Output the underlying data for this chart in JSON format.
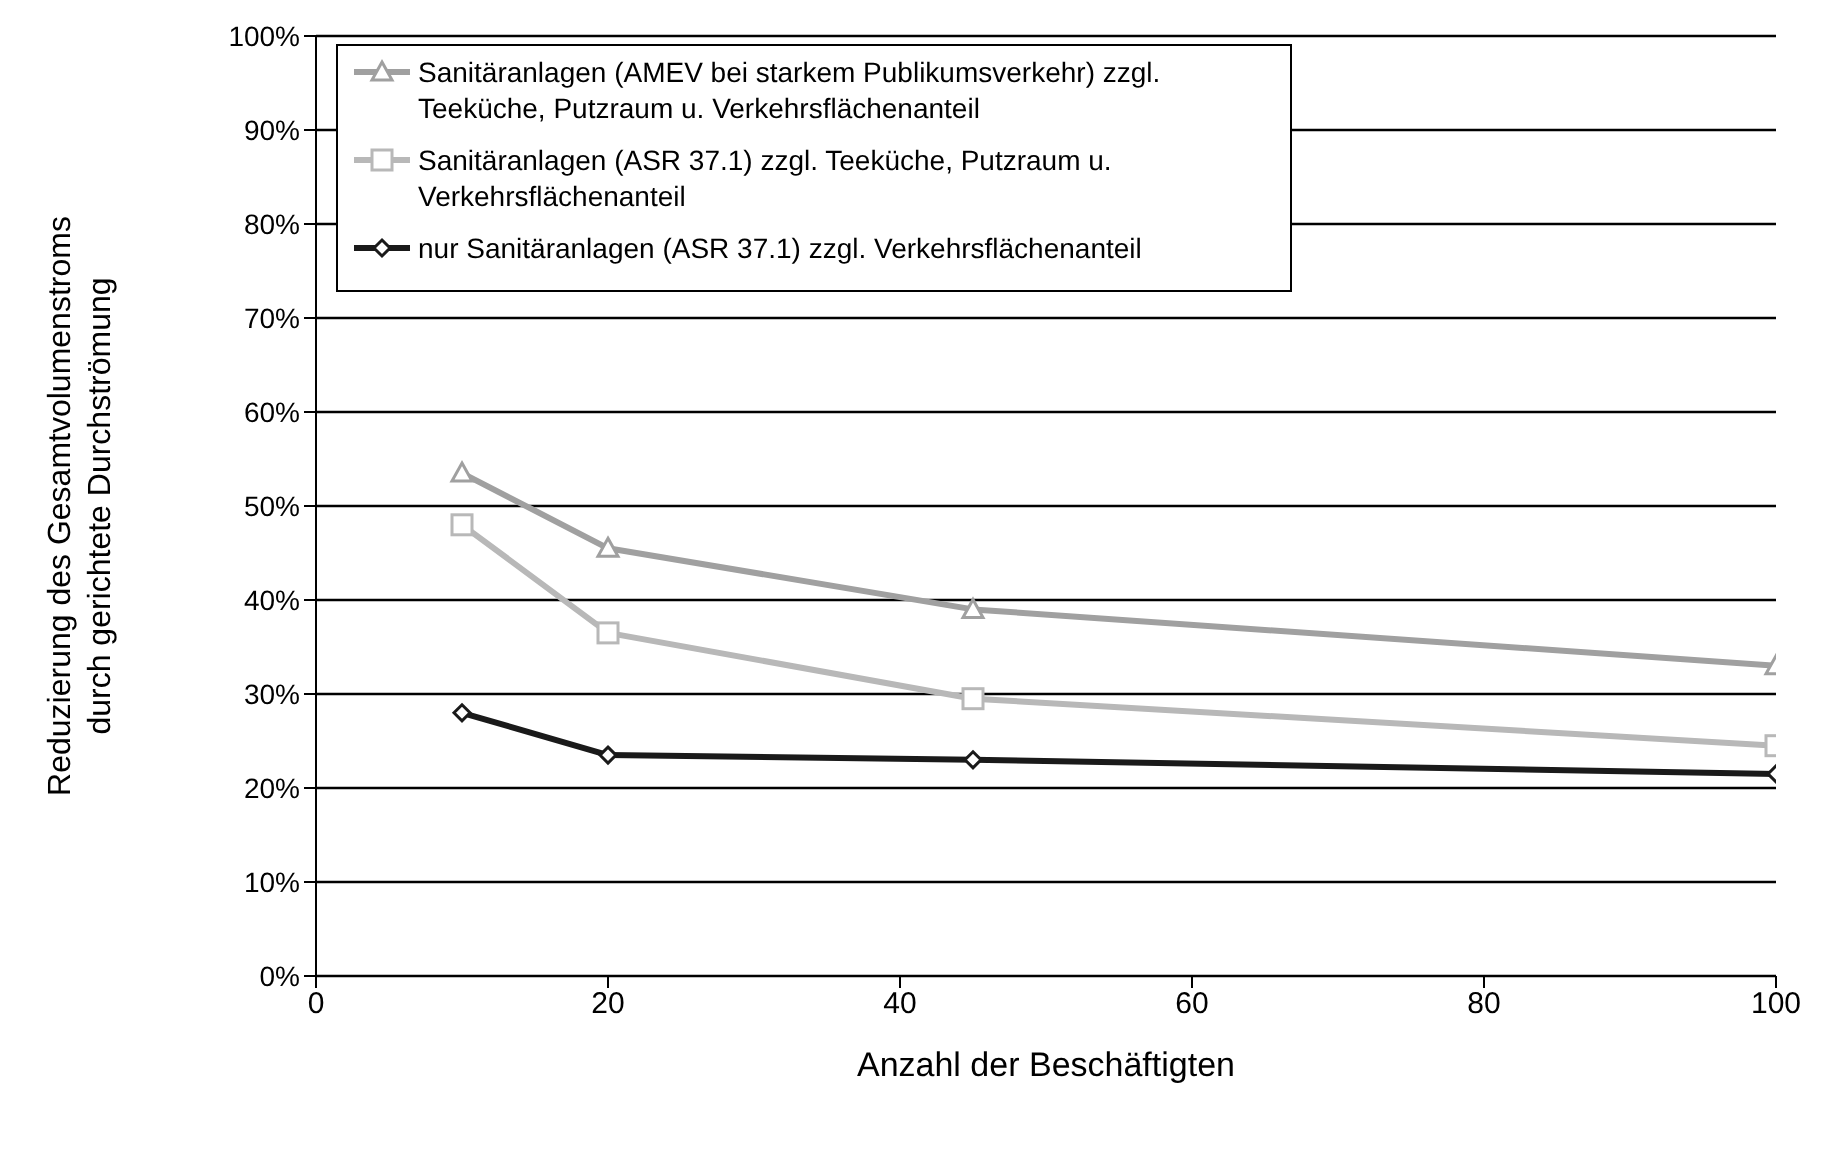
{
  "chart_data": {
    "type": "line",
    "xlabel": "Anzahl der Beschäftigten",
    "ylabel": "Reduzierung des Gesamtvolumenstroms durch gerichtete Durchströmung",
    "x": [
      10,
      20,
      45,
      100
    ],
    "series": [
      {
        "name": "Sanitäranlagen  (AMEV bei starkem Publikumsverkehr) zzgl. Teeküche, Putzraum u. Verkehrsflächenanteil",
        "color": "#a0a0a0",
        "marker": "triangle",
        "values": [
          0.535,
          0.455,
          0.39,
          0.33
        ]
      },
      {
        "name": "Sanitäranlagen (ASR 37.1) zzgl. Teeküche, Putzraum u. Verkehrsflächenanteil",
        "color": "#b8b8b8",
        "marker": "square",
        "values": [
          0.48,
          0.365,
          0.295,
          0.245
        ]
      },
      {
        "name": "nur Sanitäranlagen (ASR 37.1) zzgl. Verkehrsflächenanteil",
        "color": "#1a1a1a",
        "marker": "diamond",
        "values": [
          0.28,
          0.235,
          0.23,
          0.215
        ]
      }
    ],
    "xlim": [
      0,
      100
    ],
    "xticks": [
      0,
      20,
      40,
      60,
      80,
      100
    ],
    "ylim": [
      0,
      1
    ],
    "yticks": [
      {
        "value": 0,
        "label": "0%"
      },
      {
        "value": 0.1,
        "label": "10%"
      },
      {
        "value": 0.2,
        "label": "20%"
      },
      {
        "value": 0.3,
        "label": "30%"
      },
      {
        "value": 0.4,
        "label": "40%"
      },
      {
        "value": 0.5,
        "label": "50%"
      },
      {
        "value": 0.6,
        "label": "60%"
      },
      {
        "value": 0.7,
        "label": "70%"
      },
      {
        "value": 0.8,
        "label": "80%"
      },
      {
        "value": 0.9,
        "label": "90%"
      },
      {
        "value": 1,
        "label": "100%"
      }
    ],
    "grid": "y",
    "legend": "top left",
    "line_style": "solid"
  }
}
